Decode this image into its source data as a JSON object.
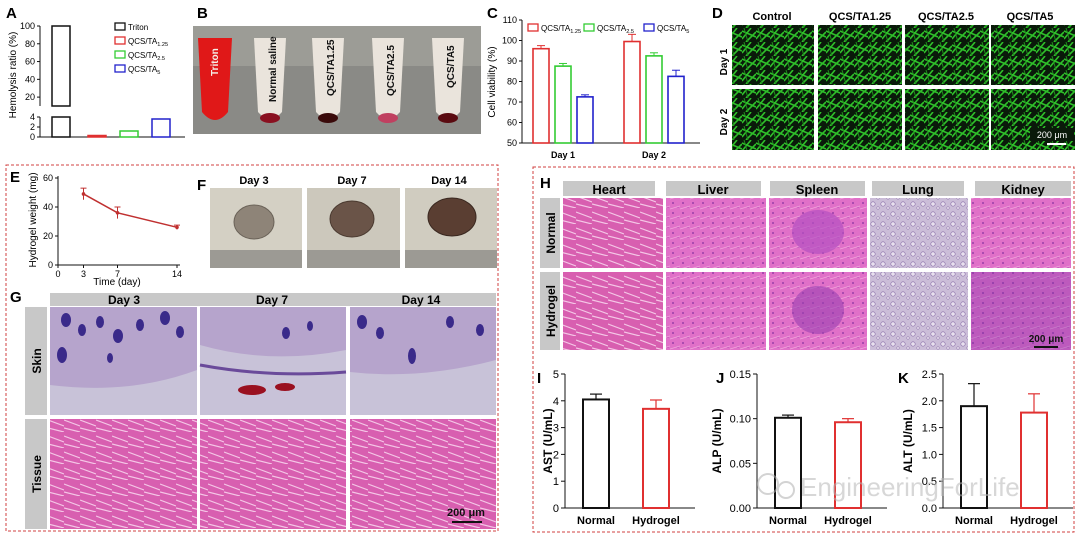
{
  "colors": {
    "black": "#111111",
    "red": "#e03030",
    "green": "#33cc33",
    "blue": "#2222cc",
    "dashed_border": "#d04040",
    "he_pink": "#d85fb8",
    "he_purple": "#8a3fa8",
    "fluor_green": "#2fc02a",
    "caption_gray": "#c8c8c8"
  },
  "watermark": "EngineeringForLife",
  "panels": {
    "A": {
      "letter": "A",
      "ylabel": "Hemolysis ratio (%)",
      "upper_ticks": [
        "100",
        "80",
        "60",
        "40",
        "20"
      ],
      "lower_ticks": [
        "4",
        "2",
        "0"
      ]
    },
    "B": {
      "letter": "B",
      "tube_labels": [
        "Triton",
        "Normal saline",
        "QCS/TA1.25",
        "QCS/TA2.5",
        "QCS/TA5"
      ]
    },
    "C": {
      "letter": "C"
    },
    "D": {
      "letter": "D",
      "col_labels": [
        "Control",
        "QCS/TA1.25",
        "QCS/TA2.5",
        "QCS/TA5"
      ],
      "row_labels": [
        "Day 1",
        "Day 2"
      ],
      "scale": "200 μm"
    },
    "E": {
      "letter": "E",
      "ylabel": "Hydrogel weight (mg)",
      "xlabel": "Time (day)"
    },
    "F": {
      "letter": "F",
      "col_labels": [
        "Day 3",
        "Day 7",
        "Day 14"
      ]
    },
    "G": {
      "letter": "G",
      "col_labels": [
        "Day 3",
        "Day 7",
        "Day 14"
      ],
      "row_labels": [
        "Skin",
        "Tissue"
      ],
      "scale": "200 μm"
    },
    "H": {
      "letter": "H",
      "col_labels": [
        "Heart",
        "Liver",
        "Spleen",
        "Lung",
        "Kidney"
      ],
      "row_labels": [
        "Normal",
        "Hydrogel"
      ],
      "scale": "200 μm"
    },
    "I": {
      "letter": "I"
    },
    "J": {
      "letter": "J"
    },
    "K": {
      "letter": "K"
    }
  },
  "chart_data": [
    {
      "id": "A",
      "type": "bar",
      "title": "",
      "ylabel": "Hemolysis ratio (%)",
      "ylim": [
        0,
        100
      ],
      "categories": [
        "Triton",
        "QCS/TA1.25",
        "QCS/TA2.5",
        "QCS/TA5"
      ],
      "values": [
        100,
        0.3,
        1.2,
        3.6
      ],
      "legend": [
        "Triton",
        "QCS/TA1.25",
        "QCS/TA2.5",
        "QCS/TA5"
      ],
      "legend_position": "top-right"
    },
    {
      "id": "C",
      "type": "bar",
      "ylabel": "Cell viability (%)",
      "ylim": [
        50,
        110
      ],
      "yticks": [
        "50",
        "60",
        "70",
        "80",
        "90",
        "100",
        "110"
      ],
      "categories": [
        "Day 1",
        "Day 2"
      ],
      "series": [
        {
          "name": "QCS/TA1.25",
          "values": [
            96,
            99.5
          ],
          "errors": [
            1.5,
            3.5
          ]
        },
        {
          "name": "QCS/TA2.5",
          "values": [
            87.5,
            92.5
          ],
          "errors": [
            1.3,
            1.5
          ]
        },
        {
          "name": "QCS/TA5",
          "values": [
            72.5,
            82.5
          ],
          "errors": [
            1,
            3
          ]
        }
      ],
      "legend_position": "top"
    },
    {
      "id": "E",
      "type": "line",
      "ylabel": "Hydrogel weight (mg)",
      "xlabel": "Time (day)",
      "xlim": [
        0,
        14
      ],
      "ylim": [
        0,
        60
      ],
      "xticks": [
        "0",
        "3",
        "7",
        "14"
      ],
      "yticks": [
        "0",
        "20",
        "40",
        "60"
      ],
      "x": [
        3,
        7,
        14
      ],
      "values": [
        49,
        36,
        26
      ],
      "errors": [
        4,
        4,
        1.5
      ]
    },
    {
      "id": "I",
      "type": "bar",
      "ylabel": "AST (U/mL)",
      "ylim": [
        0,
        5
      ],
      "yticks": [
        "0",
        "1",
        "2",
        "3",
        "4",
        "5"
      ],
      "categories": [
        "Normal",
        "Hydrogel"
      ],
      "values": [
        4.05,
        3.7
      ],
      "errors": [
        0.2,
        0.33
      ]
    },
    {
      "id": "J",
      "type": "bar",
      "ylabel": "ALP (U/mL)",
      "ylim": [
        0,
        0.15
      ],
      "yticks": [
        "0.00",
        "0.05",
        "0.10",
        "0.15"
      ],
      "categories": [
        "Normal",
        "Hydrogel"
      ],
      "values": [
        0.101,
        0.096
      ],
      "errors": [
        0.003,
        0.004
      ]
    },
    {
      "id": "K",
      "type": "bar",
      "ylabel": "ALT (U/mL)",
      "ylim": [
        0,
        2.5
      ],
      "yticks": [
        "0.0",
        "0.5",
        "1.0",
        "1.5",
        "2.0",
        "2.5"
      ],
      "categories": [
        "Normal",
        "Hydrogel"
      ],
      "values": [
        1.9,
        1.78
      ],
      "errors": [
        0.42,
        0.35
      ]
    }
  ]
}
